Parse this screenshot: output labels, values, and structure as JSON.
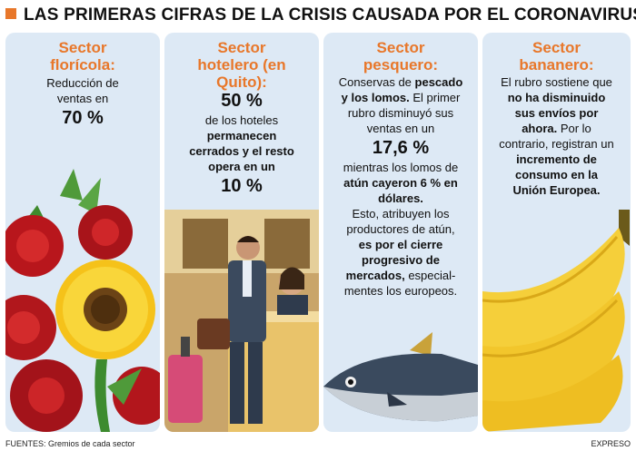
{
  "title": "LAS PRIMERAS CIFRAS DE LA CRISIS CAUSADA POR EL CORONAVIRUS",
  "panels": [
    {
      "heading_1": "Sector",
      "heading_2": "florícola:",
      "text_1": "Reducción de",
      "text_2": "ventas en",
      "figure": "70 %"
    },
    {
      "heading_1": "Sector",
      "heading_2": "hotelero (en",
      "heading_3": "Quito):",
      "figure_1": "50 %",
      "text_1": "de los hoteles",
      "text_2_bold": "permanecen",
      "text_3_bold": "cerrados y el resto",
      "text_4_bold": "opera en un",
      "figure_2": "10 %"
    },
    {
      "heading_1": "Sector",
      "heading_2": "pesquero:",
      "l1_a": "Conservas de ",
      "l1_b": "pescado",
      "l2_a": "y los lomos.",
      "l2_b": " El primer",
      "l3": "rubro disminuyó sus",
      "l4": "ventas en un",
      "figure": "17,6 %",
      "l5": "mientras los lomos de",
      "l6": "atún cayeron 6 % en",
      "l7": "dólares.",
      "l8": "Esto, atribuyen los",
      "l9": "productores de atún,",
      "l10": "es por el cierre",
      "l11": "progresivo  de",
      "l12": "mercados,",
      "l12b": " especial-",
      "l13": "mentes los europeos."
    },
    {
      "heading_1": "Sector",
      "heading_2": "bananero:",
      "l1": "El rubro sostiene que",
      "l2": "no ha disminuido",
      "l3": "sus envíos por",
      "l4": "ahora.",
      "l4b": " Por lo",
      "l5": "contrario, registran un",
      "l6": "incremento de",
      "l7": "consumo en la",
      "l8": "Unión Europea."
    }
  ],
  "footer": {
    "sources": "FUENTES: Gremios de cada sector",
    "brand": "EXPRESO"
  },
  "colors": {
    "heading": "#e8772a",
    "panel_bg": "#dde9f5"
  },
  "icons": [
    "flowers-illustration",
    "hotel-reception-illustration",
    "tuna-fish-illustration",
    "bananas-illustration"
  ]
}
